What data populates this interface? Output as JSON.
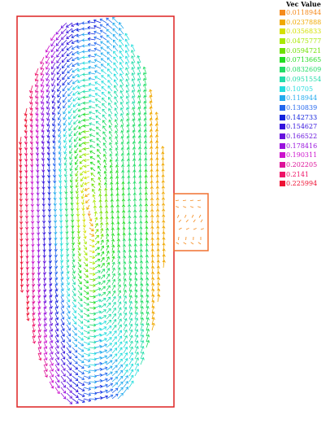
{
  "legend": {
    "title": "Vec Value",
    "entries": [
      {
        "label": "0.0118944",
        "color": "#f58a1c"
      },
      {
        "label": "0.0237888",
        "color": "#f0a800"
      },
      {
        "label": "0.0356833",
        "color": "#d4e000"
      },
      {
        "label": "0.0475777",
        "color": "#a8e800"
      },
      {
        "label": "0.0594721",
        "color": "#6ee000"
      },
      {
        "label": "0.0713665",
        "color": "#22dd22"
      },
      {
        "label": "0.0832609",
        "color": "#22dd66"
      },
      {
        "label": "0.0951554",
        "color": "#22ddaa"
      },
      {
        "label": "0.10705",
        "color": "#22dddd"
      },
      {
        "label": "0.118944",
        "color": "#22aaee"
      },
      {
        "label": "0.130839",
        "color": "#2266ee"
      },
      {
        "label": "0.142733",
        "color": "#1122dd"
      },
      {
        "label": "0.154627",
        "color": "#3311dd"
      },
      {
        "label": "0.166522",
        "color": "#6611dd"
      },
      {
        "label": "0.178416",
        "color": "#9911dd"
      },
      {
        "label": "0.190311",
        "color": "#cc11cc"
      },
      {
        "label": "0.202205",
        "color": "#dd1199"
      },
      {
        "label": "0.2141",
        "color": "#ee1166"
      },
      {
        "label": "0.225994",
        "color": "#ee1133"
      }
    ]
  },
  "colors": {
    "domain_outline": "#dd2222",
    "side_cavity_outline": "#f07030",
    "background": "#ffffff"
  }
}
